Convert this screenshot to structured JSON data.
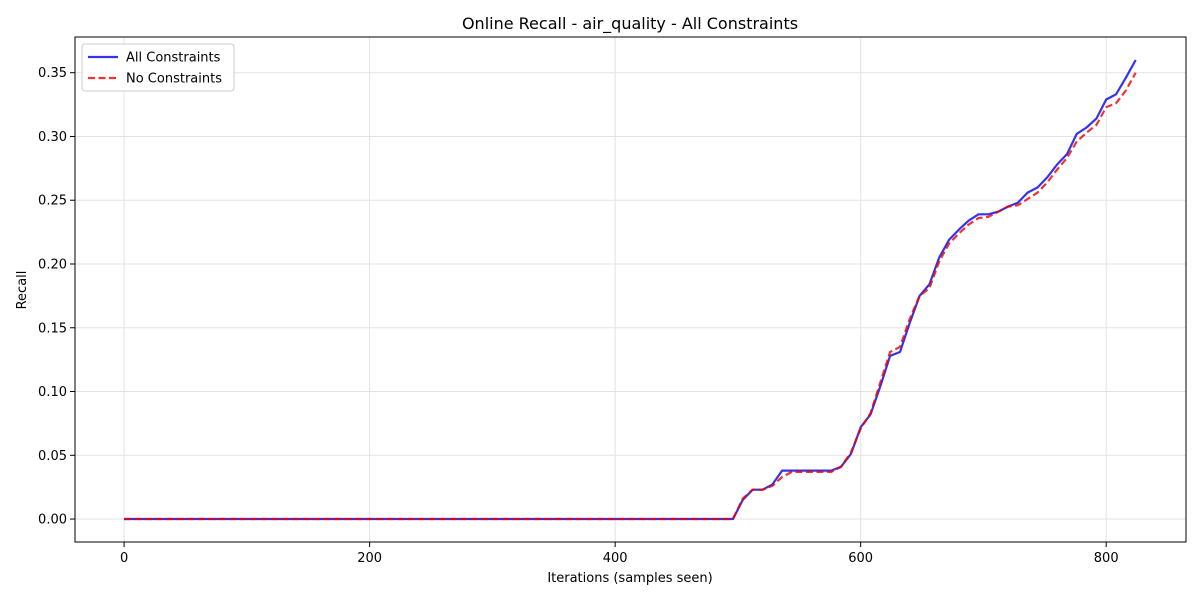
{
  "chart_data": {
    "type": "line",
    "title": "Online Recall - air_quality - All Constraints",
    "xlabel": "Iterations (samples seen)",
    "ylabel": "Recall",
    "xlim": [
      -40,
      865
    ],
    "ylim": [
      -0.018,
      0.378
    ],
    "xticks": [
      0,
      200,
      400,
      600,
      800
    ],
    "xtick_labels": [
      "0",
      "200",
      "400",
      "600",
      "800"
    ],
    "yticks": [
      0.0,
      0.05,
      0.1,
      0.15,
      0.2,
      0.25,
      0.3,
      0.35
    ],
    "ytick_labels": [
      "0.00",
      "0.05",
      "0.10",
      "0.15",
      "0.20",
      "0.25",
      "0.30",
      "0.35"
    ],
    "grid": true,
    "legend_position": "upper-left",
    "series": [
      {
        "name": "All Constraints",
        "color": "#0000ee",
        "style": "solid",
        "x": [
          0,
          50,
          100,
          150,
          200,
          250,
          300,
          350,
          400,
          450,
          496,
          504,
          512,
          520,
          528,
          536,
          544,
          552,
          560,
          568,
          576,
          584,
          592,
          600,
          608,
          616,
          624,
          632,
          640,
          648,
          656,
          664,
          672,
          680,
          688,
          696,
          704,
          712,
          720,
          728,
          736,
          744,
          752,
          760,
          768,
          776,
          784,
          792,
          800,
          808,
          816,
          824
        ],
        "values": [
          0,
          0,
          0,
          0,
          0,
          0,
          0,
          0,
          0,
          0,
          0,
          0.015,
          0.023,
          0.023,
          0.027,
          0.038,
          0.038,
          0.038,
          0.038,
          0.038,
          0.038,
          0.041,
          0.051,
          0.072,
          0.082,
          0.104,
          0.128,
          0.131,
          0.154,
          0.175,
          0.184,
          0.205,
          0.219,
          0.227,
          0.234,
          0.239,
          0.239,
          0.241,
          0.245,
          0.248,
          0.256,
          0.26,
          0.268,
          0.278,
          0.286,
          0.302,
          0.307,
          0.314,
          0.329,
          0.333,
          0.346,
          0.36
        ]
      },
      {
        "name": "No Constraints",
        "color": "#ee0000",
        "style": "dashed",
        "x": [
          0,
          50,
          100,
          150,
          200,
          250,
          300,
          350,
          400,
          450,
          496,
          504,
          512,
          520,
          528,
          536,
          544,
          552,
          560,
          568,
          576,
          584,
          592,
          600,
          608,
          616,
          624,
          632,
          640,
          648,
          656,
          664,
          672,
          680,
          688,
          696,
          704,
          712,
          720,
          728,
          736,
          744,
          752,
          760,
          768,
          776,
          784,
          792,
          800,
          808,
          816,
          824
        ],
        "values": [
          0,
          0,
          0,
          0,
          0,
          0,
          0,
          0,
          0,
          0,
          0,
          0.016,
          0.023,
          0.023,
          0.026,
          0.033,
          0.037,
          0.037,
          0.037,
          0.037,
          0.037,
          0.041,
          0.052,
          0.071,
          0.083,
          0.107,
          0.131,
          0.135,
          0.157,
          0.175,
          0.181,
          0.202,
          0.216,
          0.224,
          0.231,
          0.236,
          0.237,
          0.241,
          0.245,
          0.246,
          0.251,
          0.256,
          0.264,
          0.274,
          0.283,
          0.296,
          0.303,
          0.309,
          0.323,
          0.326,
          0.336,
          0.35
        ]
      }
    ]
  }
}
